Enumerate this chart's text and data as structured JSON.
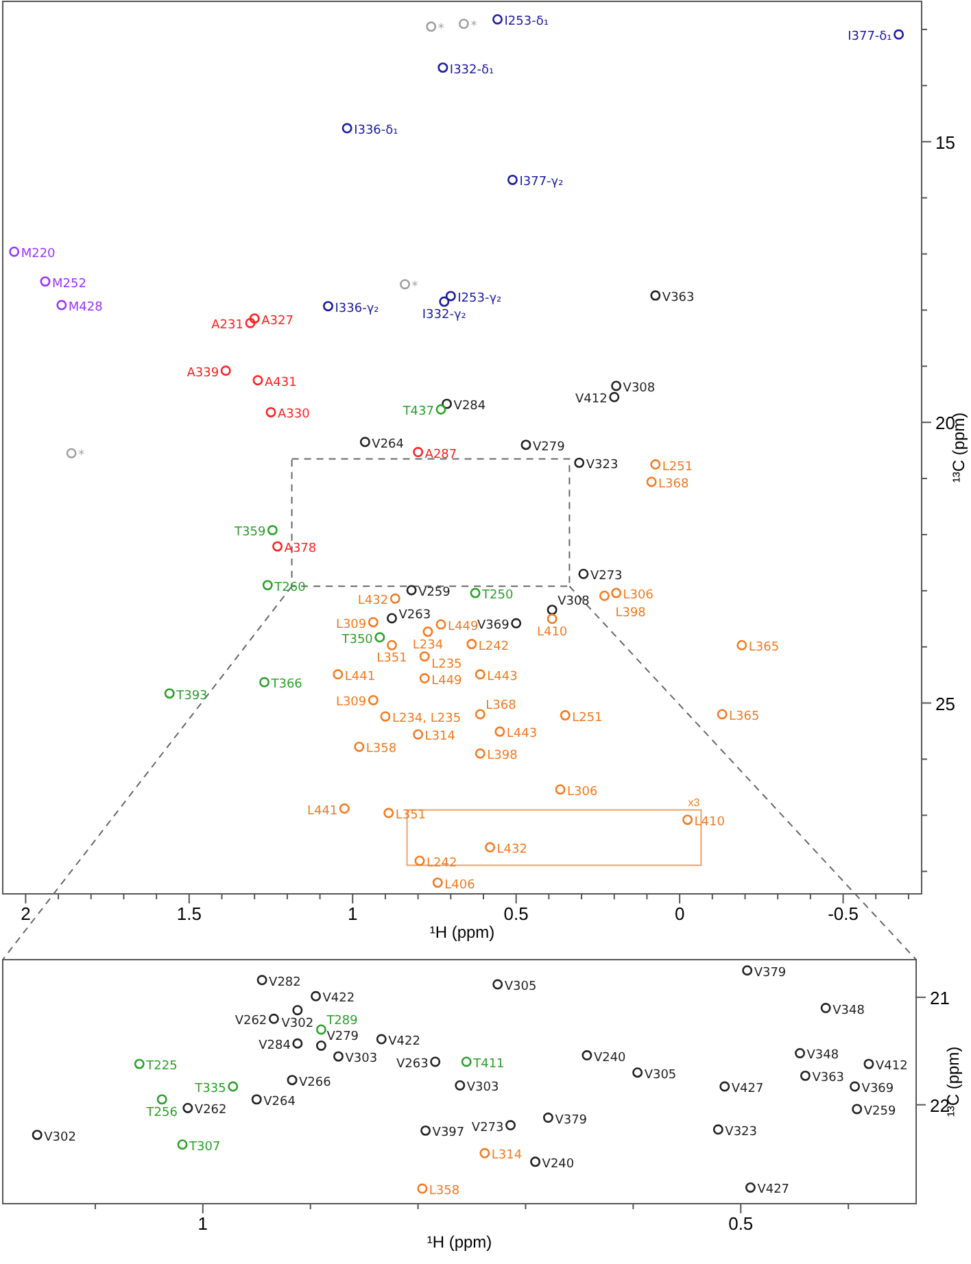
{
  "chart_data": [
    {
      "type": "scatter",
      "xlabel": "¹H (ppm)",
      "ylabel": "¹³C (ppm)",
      "xlim": [
        2.07,
        -0.74
      ],
      "ylim": [
        28.4,
        12.5
      ],
      "xticks": [
        2,
        {
          "value": 1.9,
          "label": null
        },
        {
          "value": 1.8,
          "label": null
        },
        {
          "value": 1.7,
          "label": null
        },
        {
          "value": 1.6,
          "label": null
        },
        1.5,
        {
          "value": 1.4,
          "label": null
        },
        {
          "value": 1.3,
          "label": null
        },
        {
          "value": 1.2,
          "label": null
        },
        {
          "value": 1.1,
          "label": null
        },
        1,
        {
          "value": 0.9,
          "label": null
        },
        {
          "value": 0.8,
          "label": null
        },
        {
          "value": 0.7,
          "label": null
        },
        {
          "value": 0.6,
          "label": null
        },
        0.5,
        {
          "value": 0.4,
          "label": null
        },
        {
          "value": 0.3,
          "label": null
        },
        {
          "value": 0.2,
          "label": null
        },
        {
          "value": 0.1,
          "label": null
        },
        0,
        {
          "value": -0.1,
          "label": null
        },
        {
          "value": -0.2,
          "label": null
        },
        {
          "value": -0.3,
          "label": null
        },
        {
          "value": -0.4,
          "label": null
        },
        -0.5,
        {
          "value": -0.6,
          "label": null
        },
        {
          "value": -0.7,
          "label": null
        }
      ],
      "yticks": [
        {
          "value": 13,
          "label": null
        },
        {
          "value": 14,
          "label": null
        },
        15,
        {
          "value": 16,
          "label": null
        },
        {
          "value": 17,
          "label": null
        },
        {
          "value": 18,
          "label": null
        },
        {
          "value": 19,
          "label": null
        },
        20,
        {
          "value": 21,
          "label": null
        },
        {
          "value": 22,
          "label": null
        },
        {
          "value": 23,
          "label": null
        },
        {
          "value": 24,
          "label": null
        },
        25,
        {
          "value": 26,
          "label": null
        },
        {
          "value": 27,
          "label": null
        },
        {
          "value": 28,
          "label": null
        }
      ],
      "marker": "circle",
      "series": [
        {
          "color": "#1a1aa6",
          "x": [
            0.557,
            -0.67,
            0.724,
            1.017,
            0.511,
            1.075,
            0.7,
            0.72
          ],
          "values": [
            12.82,
            13.09,
            13.68,
            14.76,
            15.68,
            17.93,
            17.75,
            17.85
          ],
          "value_labels": [
            "I253-δ₁",
            "I377-δ₁",
            "I332-δ₁",
            "I336-δ₁",
            "I377-γ₂",
            "I336-γ₂",
            "I253-γ₂",
            "I332-γ₂"
          ]
        },
        {
          "color": "#9933ff",
          "x": [
            2.035,
            1.94,
            1.89
          ],
          "values": [
            16.96,
            17.49,
            17.91
          ],
          "value_labels": [
            "M220",
            "M252",
            "M428"
          ]
        },
        {
          "color": "#ff2020",
          "x": [
            1.3,
            1.313,
            1.388,
            1.29,
            1.25,
            0.8,
            1.23
          ],
          "values": [
            18.15,
            18.23,
            19.08,
            19.25,
            19.82,
            20.53,
            22.21
          ],
          "value_labels": [
            "A327",
            "A231",
            "A339",
            "A431",
            "A330",
            "A287",
            "A378"
          ]
        },
        {
          "color": "#222222",
          "x": [
            0.074,
            0.194,
            0.2,
            0.712,
            0.962,
            0.47,
            0.307,
            0.294,
            0.82,
            0.88,
            0.39,
            0.5
          ],
          "values": [
            17.74,
            19.35,
            19.55,
            19.67,
            20.35,
            20.4,
            20.72,
            22.7,
            22.99,
            23.49,
            23.34,
            23.58
          ],
          "value_labels": [
            "V363",
            "V308",
            "V412",
            "V284",
            "V264",
            "V279",
            "V323",
            "V273",
            "V259",
            "V263",
            "V308",
            "V369"
          ]
        },
        {
          "color": "#2ca02c",
          "x": [
            0.73,
            1.245,
            1.26,
            0.625,
            0.917,
            1.27,
            1.56
          ],
          "values": [
            19.77,
            21.92,
            22.9,
            23.04,
            23.83,
            24.63,
            24.83
          ],
          "value_labels": [
            "T437",
            "T359",
            "T260",
            "T250",
            "T350",
            "T366",
            "T393"
          ]
        },
        {
          "color": "#f47a20",
          "x": [
            0.074,
            0.086,
            0.194,
            0.23,
            0.87,
            0.39,
            0.937,
            0.77,
            0.73,
            0.88,
            0.78,
            0.636,
            0.61,
            1.045,
            -0.19,
            -0.13,
            0.937,
            0.78,
            0.9,
            0.61,
            0.35,
            0.55,
            0.8,
            0.98,
            0.61,
            0.365,
            1.025,
            0.89,
            -0.024,
            0.58,
            0.795,
            0.74
          ],
          "values": [
            20.75,
            21.06,
            23.04,
            23.09,
            23.14,
            23.5,
            23.56,
            23.73,
            23.6,
            23.97,
            24.17,
            23.95,
            24.49,
            24.49,
            23.97,
            25.2,
            24.95,
            24.56,
            25.24,
            25.2,
            25.22,
            25.51,
            25.56,
            25.78,
            25.9,
            26.54,
            26.88,
            26.96,
            27.08,
            27.57,
            27.81,
            28.2
          ],
          "value_labels": [
            "L251",
            "L368",
            "L306",
            "L398",
            "L432",
            "L410",
            "L309",
            "L234",
            "L449",
            "L351",
            "L235",
            "L242",
            "L443",
            "L441",
            "L365",
            "L365",
            "L309",
            "L449",
            "L234, L235",
            "L368",
            "L251",
            "L443",
            "L314",
            "L358",
            "L398",
            "L306",
            "L441",
            "L351",
            "L410",
            "L432",
            "L242",
            "L406"
          ]
        },
        {
          "color": "#a0a0a0",
          "x": [
            0.76,
            0.66,
            0.84,
            1.86
          ],
          "values": [
            12.95,
            12.9,
            17.54,
            20.55
          ],
          "value_labels": [
            "*",
            "*",
            "*",
            "*"
          ]
        }
      ],
      "annotations": [
        "x3"
      ]
    },
    {
      "type": "scatter",
      "xlabel": "¹H (ppm)",
      "ylabel": "¹³C (ppm)",
      "xlim": [
        1.186,
        0.337
      ],
      "ylim": [
        22.92,
        20.65
      ],
      "xticks": [
        {
          "value": 1.1,
          "label": null
        },
        1,
        {
          "value": 0.9,
          "label": null
        },
        {
          "value": 0.8,
          "label": null
        },
        {
          "value": 0.7,
          "label": null
        },
        {
          "value": 0.6,
          "label": null
        },
        0.5,
        {
          "value": 0.4,
          "label": null
        }
      ],
      "yticks": [
        21,
        22
      ],
      "marker": "circle",
      "series": [
        {
          "color": "#222222",
          "x": [
            0.945,
            0.895,
            0.912,
            0.934,
            0.834,
            0.912,
            0.89,
            0.874,
            0.784,
            0.917,
            0.761,
            0.95,
            1.014,
            0.793,
            1.154,
            0.726,
            0.643,
            0.596,
            0.714,
            0.679,
            0.691,
            0.515,
            0.521,
            0.491,
            0.494,
            0.421,
            0.445,
            0.44,
            0.381,
            0.394,
            0.392
          ],
          "values": [
            20.84,
            20.99,
            21.12,
            21.2,
            21.39,
            21.43,
            21.45,
            21.55,
            21.6,
            21.77,
            21.82,
            21.95,
            22.03,
            22.24,
            22.28,
            20.88,
            21.54,
            21.7,
            22.19,
            22.12,
            22.53,
            21.83,
            22.23,
            22.77,
            20.75,
            21.1,
            21.52,
            21.73,
            21.62,
            21.83,
            22.04
          ],
          "value_labels": [
            "V282",
            "V422",
            "V302",
            "V262",
            "V422",
            "V284",
            "V279",
            "V303",
            "V263",
            "V266",
            "V303",
            "V264",
            "V262",
            "V397",
            "V302",
            "V305",
            "V240",
            "V305",
            "V273",
            "V379",
            "V240",
            "V427",
            "V323",
            "V427",
            "V379",
            "V348",
            "V348",
            "V363",
            "V412",
            "V369",
            "V259"
          ]
        },
        {
          "color": "#2ca02c",
          "x": [
            0.89,
            1.059,
            0.755,
            0.972,
            1.038,
            1.019
          ],
          "values": [
            21.3,
            21.62,
            21.6,
            21.83,
            21.95,
            22.37
          ],
          "value_labels": [
            "T289",
            "T225",
            "T411",
            "T335",
            "T256",
            "T307"
          ]
        },
        {
          "color": "#f47a20",
          "x": [
            0.796,
            0.738
          ],
          "values": [
            22.78,
            22.45
          ],
          "value_labels": [
            "L358",
            "L314"
          ]
        }
      ]
    }
  ]
}
